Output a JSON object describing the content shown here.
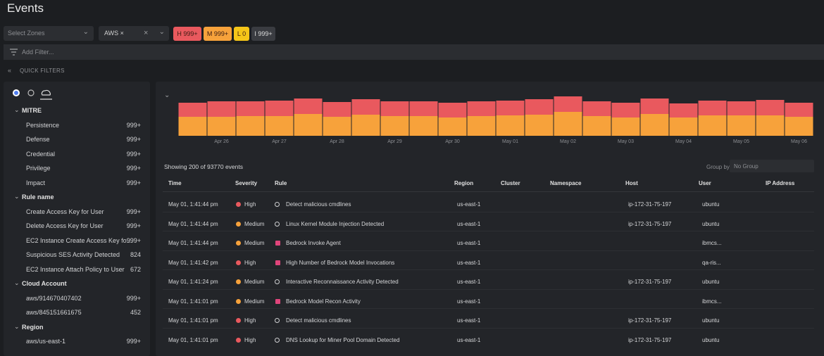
{
  "header": {
    "title": "Events"
  },
  "toolbar": {
    "zone_select": "Select Zones",
    "account_chip": "AWS ×",
    "chips": [
      {
        "label": "H 999+",
        "color": "#e9595e"
      },
      {
        "label": "M 999+",
        "color": "#f7a23b"
      },
      {
        "label": "L 0",
        "color": "#f5c518"
      },
      {
        "label": "I 999+",
        "color": "#3a3c41"
      }
    ],
    "filter_placeholder": "Add Filter...",
    "quick_filters": "QUICK FILTERS"
  },
  "sidebar": {
    "groups": [
      {
        "title": "MITRE",
        "items": [
          {
            "label": "Persistence",
            "count": "999+"
          },
          {
            "label": "Defense",
            "count": "999+"
          },
          {
            "label": "Credential",
            "count": "999+"
          },
          {
            "label": "Privilege",
            "count": "999+"
          },
          {
            "label": "Impact",
            "count": "999+"
          }
        ]
      },
      {
        "title": "Rule name",
        "items": [
          {
            "label": "Create Access Key for User",
            "count": "999+"
          },
          {
            "label": "Delete Access Key for User",
            "count": "999+"
          },
          {
            "label": "EC2 Instance Create Access Key fo...",
            "count": "999+"
          },
          {
            "label": "Suspicious SES Activity Detected",
            "count": 824
          },
          {
            "label": "EC2 Instance Attach Policy to User",
            "count": 672
          }
        ]
      },
      {
        "title": "Cloud Account",
        "items": [
          {
            "label": "aws/914670407402",
            "count": "999+"
          },
          {
            "label": "aws/845151661675",
            "count": 452
          }
        ]
      },
      {
        "title": "Region",
        "items": [
          {
            "label": "aws/us-east-1",
            "count": "999+"
          }
        ]
      }
    ]
  },
  "chart_data": {
    "type": "bar",
    "stacked": true,
    "categories": [
      null,
      "Apr 26",
      null,
      "Apr 27",
      null,
      "Apr 28",
      null,
      "Apr 29",
      null,
      "Apr 30",
      null,
      "May 01",
      null,
      "May 02",
      null,
      "May 03",
      null,
      "May 04",
      null,
      "May 05",
      null,
      "May 06"
    ],
    "series": [
      {
        "color": "#f7a23b",
        "values": [
          27,
          27,
          28,
          28,
          31,
          27,
          30,
          28,
          28,
          26,
          28,
          29,
          30,
          34,
          28,
          26,
          31,
          26,
          29,
          29,
          29,
          27
        ]
      },
      {
        "color": "#e9595e",
        "values": [
          20,
          22,
          21,
          22,
          22,
          21,
          22,
          21,
          21,
          21,
          21,
          21,
          22,
          22,
          21,
          21,
          22,
          20,
          21,
          20,
          22,
          20
        ]
      }
    ],
    "ylim": [
      0,
      60
    ]
  },
  "summary": "Showing 200 of 93770 events",
  "group_by": {
    "label": "Group by",
    "value": "No Group"
  },
  "table": {
    "columns": [
      "Time",
      "Severity",
      "Rule",
      "Region",
      "Cluster",
      "Namespace",
      "Host",
      "User",
      "IP Address"
    ],
    "severity_colors": {
      "High": "#e9595e",
      "Medium": "#f7a23b"
    },
    "rows": [
      {
        "time": "May 01, 1:41:44 pm",
        "severity": "High",
        "icon": "circle",
        "rule": "Detect malicious cmdlines",
        "region": "us-east-1",
        "host": "ip-172-31-75-197",
        "user": "ubuntu"
      },
      {
        "time": "May 01, 1:41:44 pm",
        "severity": "Medium",
        "icon": "circle",
        "rule": "Linux Kernel Module Injection Detected",
        "region": "us-east-1",
        "host": "ip-172-31-75-197",
        "user": "ubuntu"
      },
      {
        "time": "May 01, 1:41:44 pm",
        "severity": "Medium",
        "icon": "square",
        "rule": "Bedrock Invoke Agent",
        "region": "us-east-1",
        "user": "ibmcs..."
      },
      {
        "time": "May 01, 1:41:42 pm",
        "severity": "High",
        "icon": "square",
        "rule": "High Number of Bedrock Model Invocations",
        "region": "us-east-1",
        "user": "qa-ris..."
      },
      {
        "time": "May 01, 1:41:24 pm",
        "severity": "Medium",
        "icon": "circle",
        "rule": "Interactive Reconnaissance Activity Detected",
        "region": "us-east-1",
        "host": "ip-172-31-75-197",
        "user": "ubuntu"
      },
      {
        "time": "May 01, 1:41:01 pm",
        "severity": "Medium",
        "icon": "square",
        "rule": "Bedrock Model Recon Activity",
        "region": "us-east-1",
        "user": "ibmcs..."
      },
      {
        "time": "May 01, 1:41:01 pm",
        "severity": "High",
        "icon": "circle",
        "rule": "Detect malicious cmdlines",
        "region": "us-east-1",
        "host": "ip-172-31-75-197",
        "user": "ubuntu"
      },
      {
        "time": "May 01, 1:41:01 pm",
        "severity": "High",
        "icon": "circle",
        "rule": "DNS Lookup for Miner Pool Domain Detected",
        "region": "us-east-1",
        "host": "ip-172-31-75-197",
        "user": "ubuntu"
      }
    ]
  }
}
